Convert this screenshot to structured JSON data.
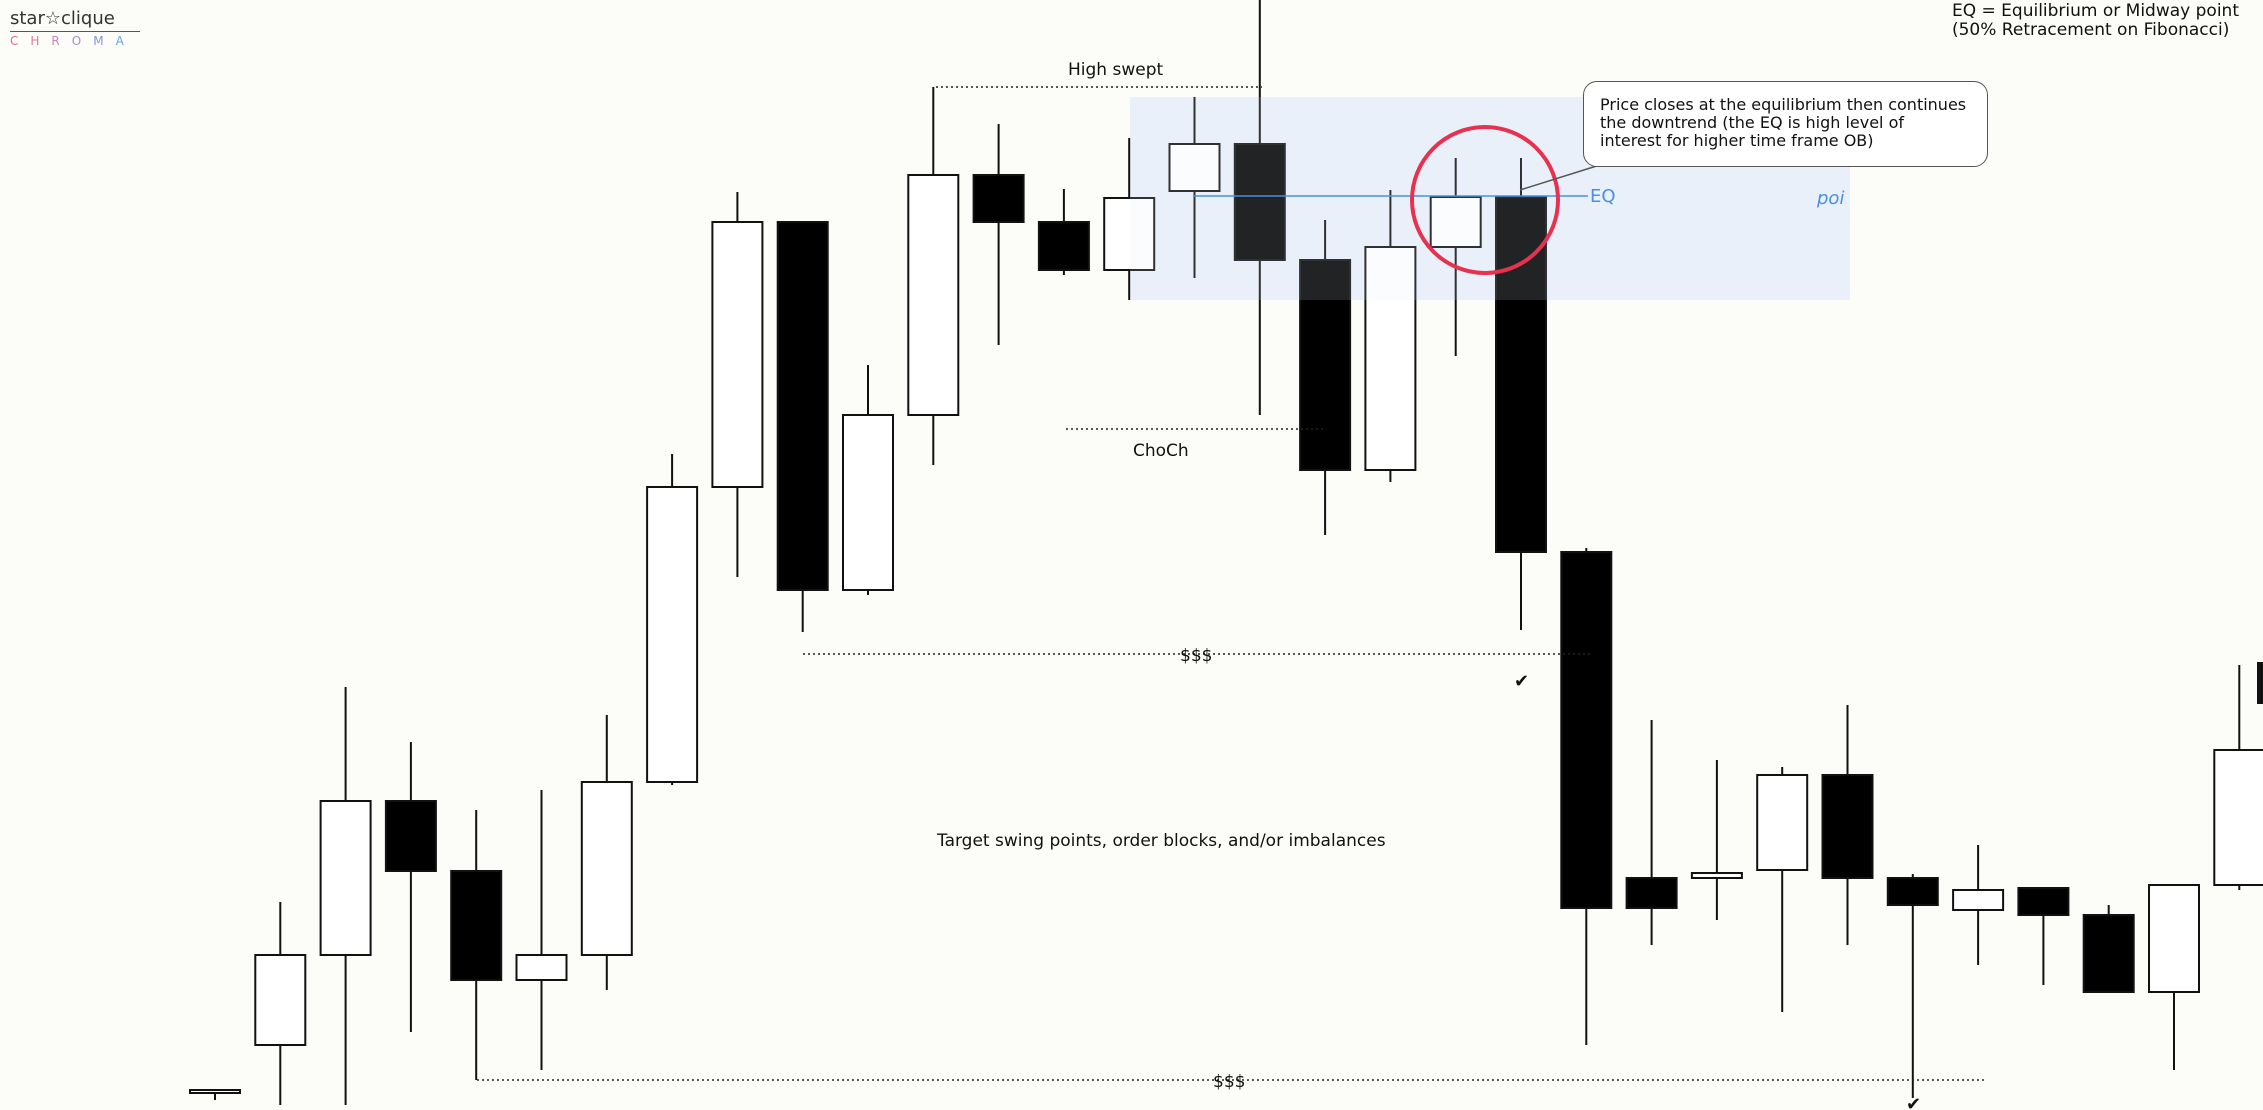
{
  "logo": {
    "main": "star☆clique",
    "sub_letters": [
      "C",
      "H",
      "R",
      "O",
      "M",
      "A"
    ]
  },
  "eq_note": {
    "line1": "EQ = Equilibrium or Midway point",
    "line2": "(50% Retracement on Fibonacci)"
  },
  "callout": {
    "text": "Price closes at the equilibrium then continues the downtrend (the EQ is high level of interest for higher time frame OB)"
  },
  "annotations": {
    "high_swept": "High swept",
    "choch": "ChoCh",
    "liquidity_upper": "$$$",
    "liquidity_lower": "$$$",
    "eq_label": "EQ",
    "poi_label": "poi",
    "target": "Target swing points, order blocks, and/or imbalances",
    "check_upper": "✔",
    "check_lower": "✔"
  },
  "colors": {
    "background": "#fcfcf9",
    "bull_body": "#ffffff",
    "bear_body": "#000000",
    "zone_fill": "#e6eef8",
    "eq_line": "#4a8fe0",
    "highlight_circle": "#e8314f"
  },
  "chart_data": {
    "type": "candlestick",
    "title": "",
    "xlabel": "",
    "ylabel": "",
    "grid": false,
    "ylim": [
      0,
      1110
    ],
    "y_axis_note": "no price axis is printed; values are in relative price units (0 = bottom, 1110 = top)",
    "candles": [
      {
        "o": 20,
        "h": 16,
        "l": 10,
        "c": 20
      },
      {
        "o": 65,
        "h": 208,
        "l": 5,
        "c": 155
      },
      {
        "o": 155,
        "h": 423,
        "l": 5,
        "c": 309
      },
      {
        "o": 309,
        "h": 368,
        "l": 78,
        "c": 239
      },
      {
        "o": 239,
        "h": 300,
        "l": 30,
        "c": 130
      },
      {
        "o": 130,
        "h": 320,
        "l": 40,
        "c": 155
      },
      {
        "o": 155,
        "h": 395,
        "l": 120,
        "c": 328
      },
      {
        "o": 328,
        "h": 656,
        "l": 325,
        "c": 623
      },
      {
        "o": 623,
        "h": 918,
        "l": 533,
        "c": 888
      },
      {
        "o": 888,
        "h": 889,
        "l": 478,
        "c": 520
      },
      {
        "o": 520,
        "h": 745,
        "l": 515,
        "c": 695
      },
      {
        "o": 695,
        "h": 1023,
        "l": 645,
        "c": 935
      },
      {
        "o": 935,
        "h": 986,
        "l": 765,
        "c": 888
      },
      {
        "o": 888,
        "h": 921,
        "l": 835,
        "c": 840
      },
      {
        "o": 840,
        "h": 972,
        "l": 810,
        "c": 912
      },
      {
        "o": 919,
        "h": 1013,
        "l": 832,
        "c": 966
      },
      {
        "o": 966,
        "h": 1110,
        "l": 695,
        "c": 850
      },
      {
        "o": 850,
        "h": 890,
        "l": 575,
        "c": 640
      },
      {
        "o": 640,
        "h": 920,
        "l": 628,
        "c": 863
      },
      {
        "o": 863,
        "h": 952,
        "l": 754,
        "c": 913
      },
      {
        "o": 913,
        "h": 952,
        "l": 480,
        "c": 558
      },
      {
        "o": 558,
        "h": 562,
        "l": 65,
        "c": 202
      },
      {
        "o": 232,
        "h": 390,
        "l": 165,
        "c": 202
      },
      {
        "o": 232,
        "h": 350,
        "l": 190,
        "c": 237
      },
      {
        "o": 240,
        "h": 343,
        "l": 98,
        "c": 335
      },
      {
        "o": 335,
        "h": 405,
        "l": 165,
        "c": 232
      },
      {
        "o": 232,
        "h": 236,
        "l": 12,
        "c": 205
      },
      {
        "o": 200,
        "h": 265,
        "l": 145,
        "c": 220
      },
      {
        "o": 222,
        "h": 222,
        "l": 125,
        "c": 195
      },
      {
        "o": 195,
        "h": 205,
        "l": 118,
        "c": 118
      },
      {
        "o": 118,
        "h": 225,
        "l": 40,
        "c": 225
      },
      {
        "o": 225,
        "h": 445,
        "l": 220,
        "c": 360
      },
      {
        "o": 360,
        "h": 445,
        "l": 360,
        "c": 420
      }
    ]
  }
}
